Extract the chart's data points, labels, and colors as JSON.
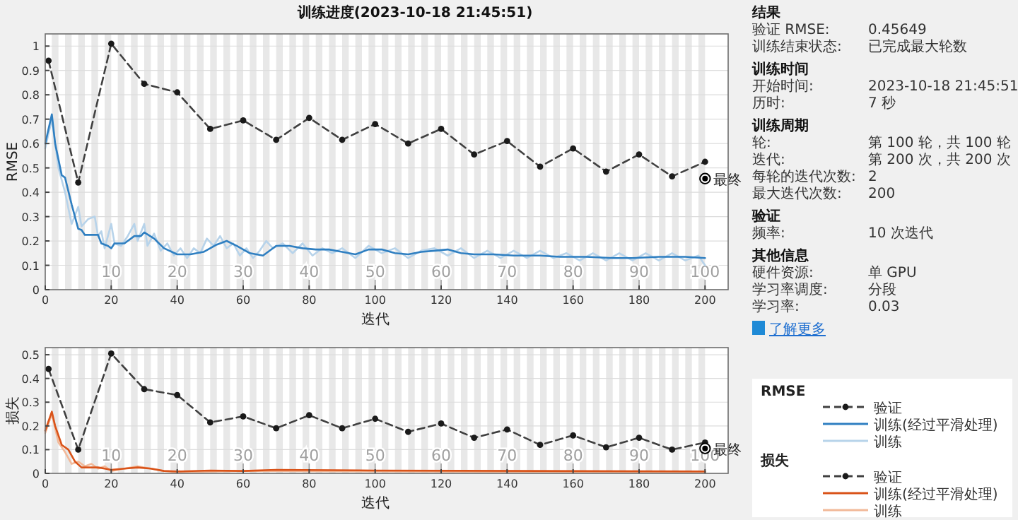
{
  "chart_data": [
    {
      "type": "line",
      "title": "训练进度(2023-10-18 21:45:51)",
      "xlabel": "迭代",
      "ylabel": "RMSE",
      "legend_title": "RMSE",
      "legend": "right",
      "grid": "y",
      "xlim": [
        0,
        207
      ],
      "xticks": [
        0,
        20,
        40,
        60,
        80,
        100,
        120,
        140,
        160,
        180,
        200
      ],
      "ylim": [
        0,
        1.05
      ],
      "yticks": [
        0,
        0.1,
        0.2,
        0.3,
        0.4,
        0.5,
        0.6,
        0.7,
        0.8,
        0.9,
        1
      ],
      "x2lim": [
        0,
        103.5
      ],
      "x2ticks": [
        10,
        20,
        30,
        40,
        50,
        60,
        70,
        80,
        90,
        100
      ],
      "bands": [
        {
          "axis": "x",
          "from": 2,
          "to": 4
        },
        {
          "axis": "x",
          "from": 6,
          "to": 8
        },
        {
          "axis": "x",
          "from": 10,
          "to": 12
        },
        {
          "axis": "x",
          "from": 14,
          "to": 16
        },
        {
          "axis": "x",
          "from": 18,
          "to": 20
        },
        {
          "axis": "x",
          "from": 22,
          "to": 24
        },
        {
          "axis": "x",
          "from": 26,
          "to": 28
        },
        {
          "axis": "x",
          "from": 30,
          "to": 32
        },
        {
          "axis": "x",
          "from": 34,
          "to": 36
        },
        {
          "axis": "x",
          "from": 38,
          "to": 40
        },
        {
          "axis": "x",
          "from": 42,
          "to": 44
        },
        {
          "axis": "x",
          "from": 46,
          "to": 48
        },
        {
          "axis": "x",
          "from": 50,
          "to": 52
        },
        {
          "axis": "x",
          "from": 54,
          "to": 56
        },
        {
          "axis": "x",
          "from": 58,
          "to": 60
        },
        {
          "axis": "x",
          "from": 62,
          "to": 64
        },
        {
          "axis": "x",
          "from": 66,
          "to": 68
        },
        {
          "axis": "x",
          "from": 70,
          "to": 72
        },
        {
          "axis": "x",
          "from": 74,
          "to": 76
        },
        {
          "axis": "x",
          "from": 78,
          "to": 80
        },
        {
          "axis": "x",
          "from": 82,
          "to": 84
        },
        {
          "axis": "x",
          "from": 86,
          "to": 88
        },
        {
          "axis": "x",
          "from": 90,
          "to": 92
        },
        {
          "axis": "x",
          "from": 94,
          "to": 96
        },
        {
          "axis": "x",
          "from": 98,
          "to": 100
        },
        {
          "axis": "x",
          "from": 102,
          "to": 104
        },
        {
          "axis": "x",
          "from": 106,
          "to": 108
        },
        {
          "axis": "x",
          "from": 110,
          "to": 112
        },
        {
          "axis": "x",
          "from": 114,
          "to": 116
        },
        {
          "axis": "x",
          "from": 118,
          "to": 120
        },
        {
          "axis": "x",
          "from": 122,
          "to": 124
        },
        {
          "axis": "x",
          "from": 126,
          "to": 128
        },
        {
          "axis": "x",
          "from": 130,
          "to": 132
        },
        {
          "axis": "x",
          "from": 134,
          "to": 136
        },
        {
          "axis": "x",
          "from": 138,
          "to": 140
        },
        {
          "axis": "x",
          "from": 142,
          "to": 144
        },
        {
          "axis": "x",
          "from": 146,
          "to": 148
        },
        {
          "axis": "x",
          "from": 150,
          "to": 152
        },
        {
          "axis": "x",
          "from": 154,
          "to": 156
        },
        {
          "axis": "x",
          "from": 158,
          "to": 160
        },
        {
          "axis": "x",
          "from": 162,
          "to": 164
        },
        {
          "axis": "x",
          "from": 166,
          "to": 168
        },
        {
          "axis": "x",
          "from": 170,
          "to": 172
        },
        {
          "axis": "x",
          "from": 174,
          "to": 176
        },
        {
          "axis": "x",
          "from": 178,
          "to": 180
        },
        {
          "axis": "x",
          "from": 182,
          "to": 184
        },
        {
          "axis": "x",
          "from": 186,
          "to": 188
        },
        {
          "axis": "x",
          "from": 190,
          "to": 192
        },
        {
          "axis": "x",
          "from": 194,
          "to": 196
        },
        {
          "axis": "x",
          "from": 198,
          "to": 200
        }
      ],
      "series": [
        {
          "type": "line",
          "name": "训练",
          "color": "#b7d3ea",
          "x": [
            0,
            2,
            4,
            6,
            8,
            10,
            11,
            13,
            15,
            16,
            17,
            18,
            20,
            21,
            23,
            25,
            27,
            28,
            30,
            31,
            33,
            35,
            37,
            39,
            41,
            43,
            45,
            47,
            49,
            51,
            53,
            55,
            57,
            59,
            61,
            63,
            65,
            67,
            69,
            72,
            75,
            78,
            81,
            84,
            87,
            90,
            94,
            98,
            102,
            106,
            110,
            114,
            118,
            122,
            126,
            130,
            134,
            138,
            142,
            146,
            150,
            154,
            158,
            162,
            166,
            170,
            174,
            178,
            182,
            186,
            190,
            194,
            198,
            200
          ],
          "values": [
            0.58,
            0.7,
            0.5,
            0.4,
            0.27,
            0.34,
            0.26,
            0.29,
            0.3,
            0.22,
            0.24,
            0.17,
            0.27,
            0.19,
            0.18,
            0.22,
            0.27,
            0.2,
            0.27,
            0.18,
            0.23,
            0.16,
            0.19,
            0.14,
            0.17,
            0.13,
            0.17,
            0.15,
            0.21,
            0.18,
            0.22,
            0.17,
            0.19,
            0.14,
            0.17,
            0.13,
            0.16,
            0.2,
            0.17,
            0.19,
            0.15,
            0.19,
            0.14,
            0.17,
            0.15,
            0.17,
            0.13,
            0.18,
            0.15,
            0.17,
            0.13,
            0.16,
            0.17,
            0.14,
            0.17,
            0.13,
            0.16,
            0.13,
            0.16,
            0.13,
            0.16,
            0.13,
            0.15,
            0.12,
            0.15,
            0.12,
            0.15,
            0.12,
            0.15,
            0.12,
            0.15,
            0.12,
            0.14,
            0.1
          ]
        },
        {
          "type": "line",
          "name": "训练(经过平滑处理)",
          "color": "#2f7fc1",
          "x": [
            0,
            2,
            3,
            5,
            6,
            8,
            10,
            11,
            12,
            16,
            17,
            19,
            20,
            21,
            24,
            27,
            29,
            30,
            33,
            36,
            40,
            44,
            48,
            52,
            55,
            58,
            62,
            66,
            70,
            74,
            78,
            82,
            86,
            90,
            94,
            98,
            102,
            106,
            110,
            114,
            118,
            122,
            126,
            130,
            136,
            142,
            150,
            156,
            164,
            172,
            178,
            186,
            194,
            200
          ],
          "values": [
            0.6,
            0.72,
            0.6,
            0.47,
            0.46,
            0.35,
            0.25,
            0.245,
            0.225,
            0.225,
            0.19,
            0.18,
            0.17,
            0.19,
            0.19,
            0.22,
            0.22,
            0.235,
            0.21,
            0.17,
            0.145,
            0.145,
            0.155,
            0.185,
            0.2,
            0.18,
            0.15,
            0.14,
            0.18,
            0.18,
            0.17,
            0.165,
            0.165,
            0.155,
            0.145,
            0.165,
            0.165,
            0.15,
            0.145,
            0.155,
            0.16,
            0.165,
            0.15,
            0.145,
            0.145,
            0.14,
            0.14,
            0.135,
            0.135,
            0.13,
            0.13,
            0.135,
            0.135,
            0.13
          ]
        },
        {
          "type": "line",
          "name": "验证",
          "color": "#404040",
          "line_style": "dashed",
          "marker": "circle",
          "x": [
            1,
            10,
            20,
            30,
            40,
            50,
            60,
            70,
            80,
            90,
            100,
            110,
            120,
            130,
            140,
            150,
            160,
            170,
            180,
            190,
            200
          ],
          "values": [
            0.94,
            0.44,
            1.01,
            0.845,
            0.81,
            0.66,
            0.695,
            0.615,
            0.705,
            0.615,
            0.68,
            0.6,
            0.66,
            0.555,
            0.61,
            0.505,
            0.58,
            0.485,
            0.555,
            0.465,
            0.525
          ]
        },
        {
          "type": "scatter",
          "name": "最终",
          "color": "#000000",
          "marker": "circle",
          "x": [
            200
          ],
          "values": [
            0.456
          ]
        }
      ]
    },
    {
      "type": "line",
      "xlabel": "迭代",
      "ylabel": "损失",
      "legend_title": "损失",
      "legend": "right",
      "grid": "y",
      "xlim": [
        0,
        207
      ],
      "xticks": [
        0,
        20,
        40,
        60,
        80,
        100,
        120,
        140,
        160,
        180,
        200
      ],
      "ylim": [
        0,
        0.53
      ],
      "yticks": [
        0,
        0.1,
        0.2,
        0.3,
        0.4,
        0.5
      ],
      "x2lim": [
        0,
        103.5
      ],
      "x2ticks": [
        10,
        20,
        30,
        40,
        50,
        60,
        70,
        80,
        90,
        100
      ],
      "bands": [
        {
          "axis": "x",
          "from": 2,
          "to": 4
        },
        {
          "axis": "x",
          "from": 6,
          "to": 8
        },
        {
          "axis": "x",
          "from": 10,
          "to": 12
        },
        {
          "axis": "x",
          "from": 14,
          "to": 16
        },
        {
          "axis": "x",
          "from": 18,
          "to": 20
        },
        {
          "axis": "x",
          "from": 22,
          "to": 24
        },
        {
          "axis": "x",
          "from": 26,
          "to": 28
        },
        {
          "axis": "x",
          "from": 30,
          "to": 32
        },
        {
          "axis": "x",
          "from": 34,
          "to": 36
        },
        {
          "axis": "x",
          "from": 38,
          "to": 40
        },
        {
          "axis": "x",
          "from": 42,
          "to": 44
        },
        {
          "axis": "x",
          "from": 46,
          "to": 48
        },
        {
          "axis": "x",
          "from": 50,
          "to": 52
        },
        {
          "axis": "x",
          "from": 54,
          "to": 56
        },
        {
          "axis": "x",
          "from": 58,
          "to": 60
        },
        {
          "axis": "x",
          "from": 62,
          "to": 64
        },
        {
          "axis": "x",
          "from": 66,
          "to": 68
        },
        {
          "axis": "x",
          "from": 70,
          "to": 72
        },
        {
          "axis": "x",
          "from": 74,
          "to": 76
        },
        {
          "axis": "x",
          "from": 78,
          "to": 80
        },
        {
          "axis": "x",
          "from": 82,
          "to": 84
        },
        {
          "axis": "x",
          "from": 86,
          "to": 88
        },
        {
          "axis": "x",
          "from": 90,
          "to": 92
        },
        {
          "axis": "x",
          "from": 94,
          "to": 96
        },
        {
          "axis": "x",
          "from": 98,
          "to": 100
        },
        {
          "axis": "x",
          "from": 102,
          "to": 104
        },
        {
          "axis": "x",
          "from": 106,
          "to": 108
        },
        {
          "axis": "x",
          "from": 110,
          "to": 112
        },
        {
          "axis": "x",
          "from": 114,
          "to": 116
        },
        {
          "axis": "x",
          "from": 118,
          "to": 120
        },
        {
          "axis": "x",
          "from": 122,
          "to": 124
        },
        {
          "axis": "x",
          "from": 126,
          "to": 128
        },
        {
          "axis": "x",
          "from": 130,
          "to": 132
        },
        {
          "axis": "x",
          "from": 134,
          "to": 136
        },
        {
          "axis": "x",
          "from": 138,
          "to": 140
        },
        {
          "axis": "x",
          "from": 142,
          "to": 144
        },
        {
          "axis": "x",
          "from": 146,
          "to": 148
        },
        {
          "axis": "x",
          "from": 150,
          "to": 152
        },
        {
          "axis": "x",
          "from": 154,
          "to": 156
        },
        {
          "axis": "x",
          "from": 158,
          "to": 160
        },
        {
          "axis": "x",
          "from": 162,
          "to": 164
        },
        {
          "axis": "x",
          "from": 166,
          "to": 168
        },
        {
          "axis": "x",
          "from": 170,
          "to": 172
        },
        {
          "axis": "x",
          "from": 174,
          "to": 176
        },
        {
          "axis": "x",
          "from": 178,
          "to": 180
        },
        {
          "axis": "x",
          "from": 182,
          "to": 184
        },
        {
          "axis": "x",
          "from": 186,
          "to": 188
        },
        {
          "axis": "x",
          "from": 190,
          "to": 192
        },
        {
          "axis": "x",
          "from": 194,
          "to": 196
        },
        {
          "axis": "x",
          "from": 198,
          "to": 200
        }
      ],
      "series": [
        {
          "type": "line",
          "name": "训练",
          "color": "#f2b999",
          "x": [
            0,
            2,
            4,
            6,
            8,
            10,
            12,
            14,
            16,
            18,
            20,
            24,
            28,
            32,
            36,
            40,
            60,
            100,
            150,
            200
          ],
          "values": [
            0.17,
            0.25,
            0.13,
            0.09,
            0.04,
            0.05,
            0.03,
            0.04,
            0.02,
            0.03,
            0.01,
            0.02,
            0.03,
            0.02,
            0.01,
            0.005,
            0.01,
            0.008,
            0.006,
            0.005
          ]
        },
        {
          "type": "line",
          "name": "训练(经过平滑处理)",
          "color": "#d95319",
          "x": [
            0,
            2,
            3,
            5,
            7,
            9,
            11,
            16,
            18,
            20,
            24,
            28,
            32,
            36,
            40,
            50,
            60,
            70,
            100,
            150,
            200
          ],
          "values": [
            0.18,
            0.26,
            0.2,
            0.12,
            0.1,
            0.05,
            0.025,
            0.025,
            0.02,
            0.015,
            0.02,
            0.025,
            0.02,
            0.01,
            0.008,
            0.012,
            0.01,
            0.015,
            0.012,
            0.01,
            0.008
          ]
        },
        {
          "type": "line",
          "name": "验证",
          "color": "#404040",
          "line_style": "dashed",
          "marker": "circle",
          "x": [
            1,
            10,
            20,
            30,
            40,
            50,
            60,
            70,
            80,
            90,
            100,
            110,
            120,
            130,
            140,
            150,
            160,
            170,
            180,
            190,
            200
          ],
          "values": [
            0.44,
            0.1,
            0.505,
            0.355,
            0.33,
            0.215,
            0.24,
            0.19,
            0.245,
            0.19,
            0.23,
            0.175,
            0.21,
            0.15,
            0.185,
            0.12,
            0.16,
            0.11,
            0.15,
            0.1,
            0.13
          ]
        },
        {
          "type": "scatter",
          "name": "最终",
          "color": "#000000",
          "marker": "circle",
          "x": [
            200
          ],
          "values": [
            0.105
          ]
        }
      ]
    },
    {
      "type": "other",
      "annotations": [
        "结果",
        "验证 RMSE:",
        "0.45649",
        "训练结束状态:",
        "已完成最大轮数",
        "训练时间",
        "开始时间:",
        "2023-10-18 21:45:51",
        "历时:",
        "7 秒",
        "训练周期",
        "轮:",
        "第 100 轮，共 100 轮",
        "迭代:",
        "第 200 次，共 200 次",
        "每轮的迭代次数:",
        "2",
        "最大迭代次数:",
        "200",
        "验证",
        "频率:",
        "10 次迭代",
        "其他信息",
        "硬件资源:",
        "单 GPU",
        "学习率调度:",
        "分段",
        "学习率:",
        "0.03",
        "了解更多"
      ]
    }
  ]
}
